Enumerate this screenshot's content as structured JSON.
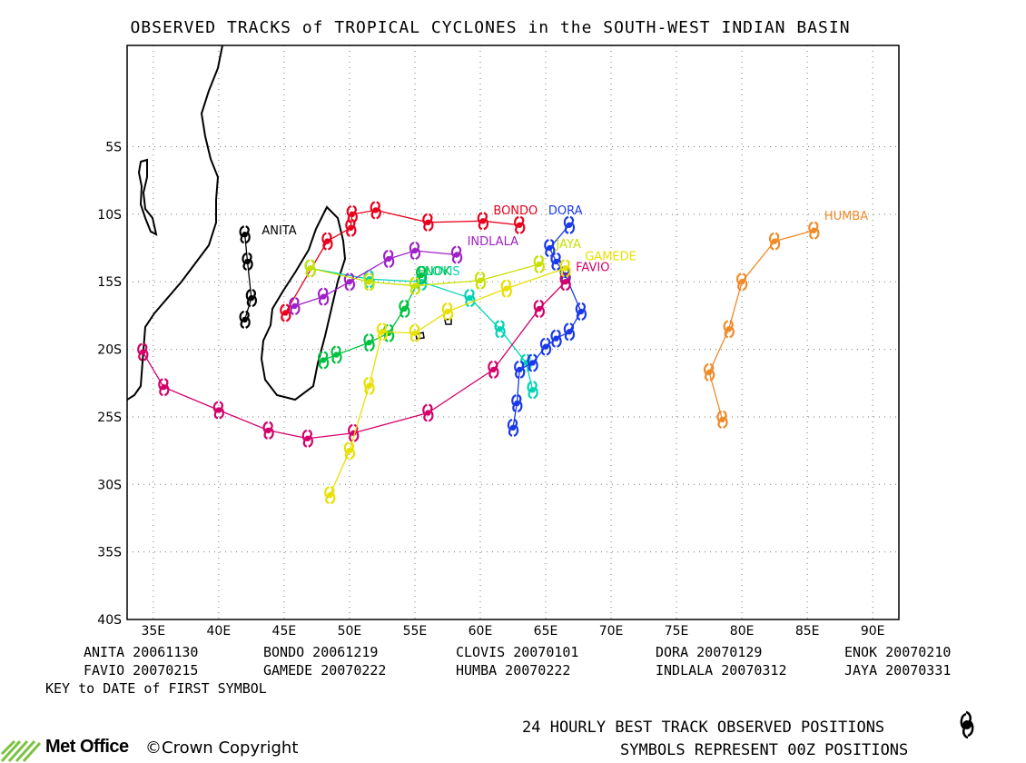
{
  "title": "OBSERVED TRACKS of TROPICAL CYCLONES in the SOUTH-WEST INDIAN BASIN",
  "lat_ticks": [
    "5S",
    "10S",
    "15S",
    "20S",
    "25S",
    "30S",
    "35S",
    "40S"
  ],
  "lon_ticks": [
    "35E",
    "40E",
    "45E",
    "50E",
    "55E",
    "60E",
    "65E",
    "70E",
    "75E",
    "80E",
    "85E",
    "90E"
  ],
  "map_extent": {
    "lon_min": 33,
    "lon_max": 92,
    "lat_max": 2.5,
    "lat_min": -40
  },
  "storms": [
    {
      "name": "ANITA",
      "date": "20061130",
      "color": "#000000",
      "label_at": [
        43.3,
        -11.5
      ],
      "track": [
        [
          42.0,
          -11.5
        ],
        [
          42.2,
          -13.5
        ],
        [
          42.5,
          -16.2
        ],
        [
          42.0,
          -17.8
        ]
      ]
    },
    {
      "name": "BONDO",
      "date": "20061219",
      "color": "#e8001c",
      "label_at": [
        61.0,
        -10.0
      ],
      "track": [
        [
          63.0,
          -10.8
        ],
        [
          60.2,
          -10.5
        ],
        [
          56.0,
          -10.6
        ],
        [
          52.0,
          -9.7
        ],
        [
          50.2,
          -10.0
        ],
        [
          50.1,
          -11.0
        ],
        [
          48.3,
          -12.0
        ],
        [
          45.1,
          -17.3
        ]
      ]
    },
    {
      "name": "CLOVIS",
      "date": "20070101",
      "color": "#00d4b4",
      "label_at": [
        55.2,
        -14.5
      ],
      "track": [
        [
          47.0,
          -14.0
        ],
        [
          51.5,
          -14.8
        ],
        [
          55.5,
          -15.0
        ],
        [
          59.2,
          -16.2
        ],
        [
          61.5,
          -18.5
        ],
        [
          63.5,
          -21.0
        ],
        [
          64.0,
          -23.0
        ]
      ]
    },
    {
      "name": "DORA",
      "date": "20070129",
      "color": "#1a39e8",
      "label_at": [
        65.2,
        -10.0
      ],
      "track": [
        [
          66.8,
          -10.8
        ],
        [
          65.3,
          -12.5
        ],
        [
          65.8,
          -13.5
        ],
        [
          66.5,
          -14.5
        ],
        [
          67.7,
          -17.2
        ],
        [
          66.8,
          -18.7
        ],
        [
          65.8,
          -19.2
        ],
        [
          65.0,
          -19.8
        ],
        [
          64.0,
          -21.0
        ],
        [
          63.0,
          -21.5
        ],
        [
          62.8,
          -24.0
        ],
        [
          62.5,
          -25.8
        ]
      ]
    },
    {
      "name": "ENOK",
      "date": "20070210",
      "color": "#00c040",
      "label_at": [
        55.2,
        -14.5
      ],
      "track": [
        [
          55.5,
          -14.5
        ],
        [
          54.2,
          -17.0
        ],
        [
          53.0,
          -18.8
        ],
        [
          51.5,
          -19.5
        ],
        [
          49.0,
          -20.4
        ],
        [
          48.0,
          -20.8
        ]
      ]
    },
    {
      "name": "FAVIO",
      "date": "20070215",
      "color": "#d4006a",
      "label_at": [
        67.3,
        -14.2
      ],
      "track": [
        [
          66.5,
          -15.0
        ],
        [
          64.5,
          -17.0
        ],
        [
          61.0,
          -21.5
        ],
        [
          56.0,
          -24.7
        ],
        [
          50.3,
          -26.2
        ],
        [
          46.8,
          -26.6
        ],
        [
          43.8,
          -26.0
        ],
        [
          40.0,
          -24.5
        ],
        [
          35.8,
          -22.8
        ],
        [
          34.2,
          -20.2
        ]
      ]
    },
    {
      "name": "GAMEDE",
      "date": "20070222",
      "color": "#e8e000",
      "label_at": [
        68.0,
        -13.4
      ],
      "track": [
        [
          66.5,
          -14.0
        ],
        [
          62.0,
          -15.5
        ],
        [
          57.5,
          -17.2
        ],
        [
          55.0,
          -18.8
        ],
        [
          52.5,
          -18.7
        ],
        [
          51.5,
          -22.7
        ],
        [
          50.0,
          -27.5
        ],
        [
          48.5,
          -30.8
        ]
      ]
    },
    {
      "name": "HUMBA",
      "date": "20070222",
      "color": "#f08a28",
      "label_at": [
        86.3,
        -10.4
      ],
      "track": [
        [
          85.5,
          -11.2
        ],
        [
          82.5,
          -12.0
        ],
        [
          80.0,
          -15.0
        ],
        [
          79.0,
          -18.5
        ],
        [
          77.5,
          -21.7
        ],
        [
          78.5,
          -25.2
        ]
      ]
    },
    {
      "name": "INDLALA",
      "date": "20070312",
      "color": "#a020c8",
      "label_at": [
        59.0,
        -12.3
      ],
      "track": [
        [
          58.2,
          -13.0
        ],
        [
          55.0,
          -12.7
        ],
        [
          53.0,
          -13.3
        ],
        [
          50.0,
          -15.0
        ],
        [
          48.0,
          -16.1
        ],
        [
          45.8,
          -16.8
        ]
      ]
    },
    {
      "name": "JAYA",
      "date": "20070331",
      "color": "#c8e000",
      "label_at": [
        65.8,
        -12.5
      ],
      "track": [
        [
          64.5,
          -13.7
        ],
        [
          60.0,
          -14.9
        ],
        [
          55.0,
          -15.3
        ],
        [
          51.5,
          -15.0
        ],
        [
          47.0,
          -14.0
        ]
      ]
    }
  ],
  "key_line3": "KEY to DATE of FIRST SYMBOL",
  "legend": {
    "line1": "24 HOURLY BEST TRACK OBSERVED POSITIONS",
    "line2": "SYMBOLS REPRESENT 00Z POSITIONS",
    "symbol_icon": "cyclone-symbol-icon"
  },
  "logo_text": "Met Office",
  "copyright": "©Crown Copyright"
}
